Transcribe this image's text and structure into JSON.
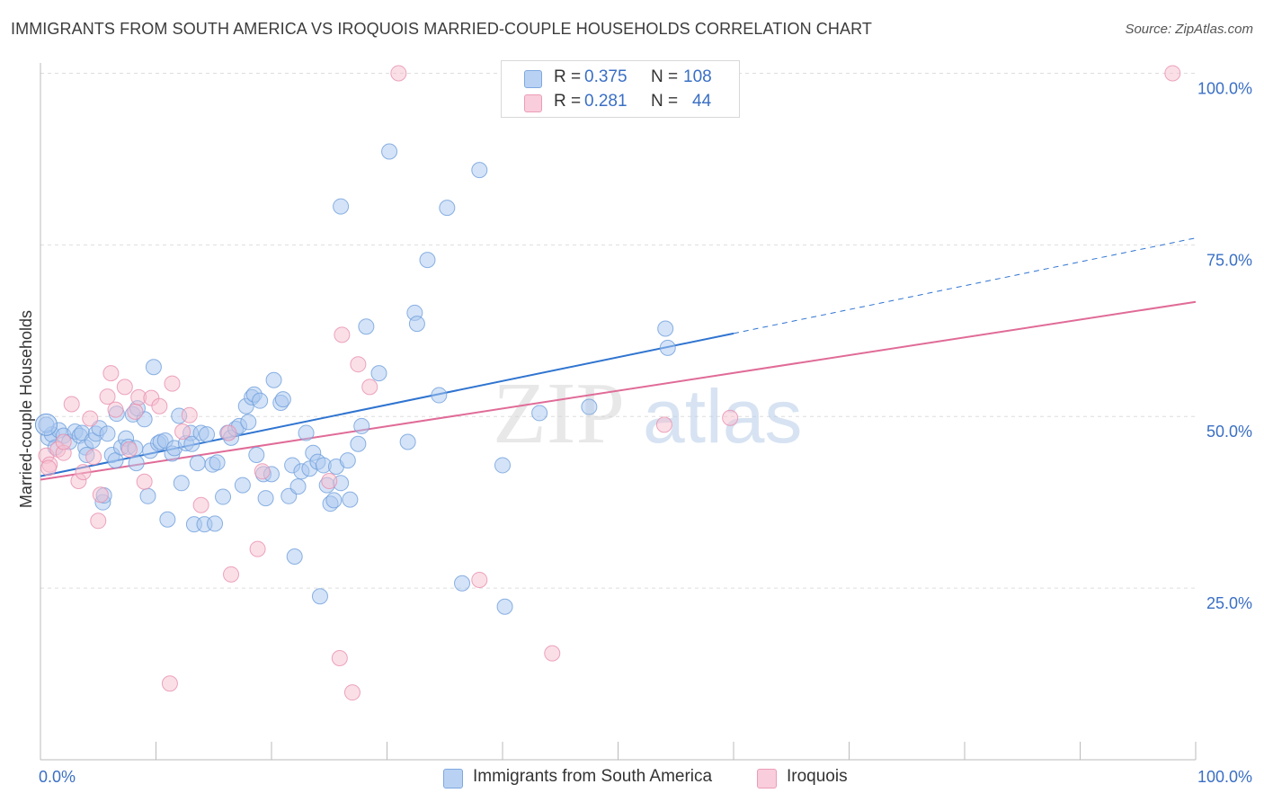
{
  "header": {
    "title": "IMMIGRANTS FROM SOUTH AMERICA VS IROQUOIS MARRIED-COUPLE HOUSEHOLDS CORRELATION CHART",
    "source": "Source: ZipAtlas.com"
  },
  "watermark": {
    "part1": "ZIP",
    "part2": "atlas"
  },
  "colors": {
    "blue_fill": "#a9c8f0",
    "blue_stroke": "#6f9fdc",
    "blue_line": "#2f74d0",
    "pink_fill": "#f6bfd0",
    "pink_stroke": "#e98fae",
    "pink_line": "#e06b97",
    "axis_label": "#3a6fc4",
    "grid": "#dddddd"
  },
  "legend_top": [
    {
      "swatch": "blue",
      "r_label": "R =",
      "r_value": "0.375",
      "n_label": "N =",
      "n_value": "108"
    },
    {
      "swatch": "pink",
      "r_label": "R =",
      "r_value": "0.281",
      "n_label": "N =",
      "n_value": "44"
    }
  ],
  "legend_bottom": [
    {
      "swatch": "blue",
      "label": "Immigrants from South America"
    },
    {
      "swatch": "pink",
      "label": "Iroquois"
    }
  ],
  "chart_data": {
    "type": "scatter",
    "title": "IMMIGRANTS FROM SOUTH AMERICA VS IROQUOIS MARRIED-COUPLE HOUSEHOLDS CORRELATION CHART",
    "xlabel": "",
    "ylabel": "Married-couple Households",
    "xlim": [
      0,
      100
    ],
    "ylim": [
      0,
      101.5
    ],
    "x_tick_labels": [
      {
        "value": 0,
        "label": "0.0%"
      },
      {
        "value": 100,
        "label": "100.0%"
      }
    ],
    "y_tick_labels": [
      {
        "value": 100,
        "label": "100.0%"
      },
      {
        "value": 75,
        "label": "75.0%"
      },
      {
        "value": 50,
        "label": "50.0%"
      },
      {
        "value": 25,
        "label": "25.0%"
      }
    ],
    "grid": true,
    "legend_position": "top-center",
    "series": [
      {
        "name": "Immigrants from South America",
        "color": "blue",
        "R": 0.375,
        "N": 108,
        "trend": {
          "x0": 0,
          "y0": 41.3,
          "x1": 60,
          "y1": 62.1,
          "dashed_to": 100,
          "dashed_y": 76.0
        },
        "points": [
          [
            0.7,
            46.9
          ],
          [
            1.0,
            47.4
          ],
          [
            1.3,
            45.5
          ],
          [
            1.6,
            48.0
          ],
          [
            2.0,
            47.2
          ],
          [
            2.5,
            46.3
          ],
          [
            3.0,
            47.8
          ],
          [
            3.4,
            47.2
          ],
          [
            3.6,
            47.6
          ],
          [
            3.9,
            45.5
          ],
          [
            4.0,
            44.4
          ],
          [
            4.5,
            46.5
          ],
          [
            4.8,
            47.5
          ],
          [
            5.1,
            48.3
          ],
          [
            5.4,
            37.5
          ],
          [
            5.5,
            38.5
          ],
          [
            5.8,
            47.5
          ],
          [
            6.2,
            44.4
          ],
          [
            6.5,
            43.6
          ],
          [
            6.6,
            50.4
          ],
          [
            7.0,
            45.5
          ],
          [
            7.4,
            46.8
          ],
          [
            7.6,
            45.6
          ],
          [
            8.0,
            50.3
          ],
          [
            8.2,
            45.4
          ],
          [
            8.3,
            43.2
          ],
          [
            9.0,
            49.6
          ],
          [
            9.3,
            38.4
          ],
          [
            9.5,
            45.0
          ],
          [
            9.8,
            57.2
          ],
          [
            10.2,
            46.1
          ],
          [
            10.4,
            46.3
          ],
          [
            10.8,
            46.5
          ],
          [
            11.0,
            35.0
          ],
          [
            11.4,
            44.6
          ],
          [
            11.6,
            45.4
          ],
          [
            12.0,
            50.1
          ],
          [
            12.2,
            40.3
          ],
          [
            12.6,
            46.1
          ],
          [
            13.0,
            47.6
          ],
          [
            13.1,
            46.0
          ],
          [
            13.3,
            34.3
          ],
          [
            13.6,
            43.2
          ],
          [
            13.9,
            47.6
          ],
          [
            14.2,
            34.3
          ],
          [
            14.4,
            47.4
          ],
          [
            14.9,
            43.0
          ],
          [
            15.1,
            34.4
          ],
          [
            15.3,
            43.3
          ],
          [
            15.8,
            38.3
          ],
          [
            16.2,
            47.6
          ],
          [
            16.5,
            46.9
          ],
          [
            16.9,
            48.2
          ],
          [
            17.2,
            48.6
          ],
          [
            17.5,
            40.0
          ],
          [
            17.8,
            51.5
          ],
          [
            18.0,
            49.2
          ],
          [
            18.3,
            52.8
          ],
          [
            18.5,
            53.2
          ],
          [
            18.7,
            44.4
          ],
          [
            19.0,
            52.3
          ],
          [
            19.3,
            41.6
          ],
          [
            19.5,
            38.1
          ],
          [
            20.0,
            41.6
          ],
          [
            20.2,
            55.3
          ],
          [
            20.8,
            52.0
          ],
          [
            21.0,
            52.5
          ],
          [
            21.5,
            38.4
          ],
          [
            21.8,
            42.9
          ],
          [
            22.0,
            29.6
          ],
          [
            22.3,
            39.8
          ],
          [
            22.6,
            42.0
          ],
          [
            23.0,
            47.6
          ],
          [
            23.3,
            42.4
          ],
          [
            23.6,
            44.7
          ],
          [
            24.0,
            43.4
          ],
          [
            24.2,
            23.8
          ],
          [
            24.5,
            42.9
          ],
          [
            24.8,
            40.0
          ],
          [
            25.1,
            37.3
          ],
          [
            25.4,
            37.8
          ],
          [
            25.6,
            42.7
          ],
          [
            26.0,
            40.3
          ],
          [
            26.6,
            43.6
          ],
          [
            26.8,
            37.9
          ],
          [
            27.5,
            46.0
          ],
          [
            27.8,
            48.6
          ],
          [
            28.2,
            63.1
          ],
          [
            29.3,
            56.3
          ],
          [
            30.2,
            88.6
          ],
          [
            32.4,
            65.1
          ],
          [
            32.6,
            63.5
          ],
          [
            26.0,
            80.6
          ],
          [
            31.8,
            46.3
          ],
          [
            33.5,
            72.8
          ],
          [
            34.5,
            53.1
          ],
          [
            35.2,
            80.4
          ],
          [
            36.5,
            25.7
          ],
          [
            38.0,
            85.9
          ],
          [
            40.0,
            42.9
          ],
          [
            40.2,
            22.3
          ],
          [
            43.2,
            50.5
          ],
          [
            47.5,
            51.4
          ],
          [
            54.1,
            62.8
          ],
          [
            54.3,
            60.0
          ],
          [
            59.4,
            100.0
          ],
          [
            0.5,
            48.8
          ],
          [
            8.4,
            51.2
          ]
        ]
      },
      {
        "name": "Iroquois",
        "color": "pink",
        "R": 0.281,
        "N": 44,
        "trend": {
          "x0": 0,
          "y0": 40.8,
          "x1": 100,
          "y1": 66.7
        },
        "points": [
          [
            0.5,
            44.3
          ],
          [
            0.8,
            43.0
          ],
          [
            1.5,
            45.2
          ],
          [
            2.0,
            44.7
          ],
          [
            2.7,
            51.8
          ],
          [
            3.3,
            40.6
          ],
          [
            3.7,
            41.9
          ],
          [
            4.3,
            49.7
          ],
          [
            4.6,
            44.1
          ],
          [
            5.0,
            34.8
          ],
          [
            5.2,
            38.6
          ],
          [
            5.8,
            52.9
          ],
          [
            6.1,
            56.3
          ],
          [
            6.5,
            51.0
          ],
          [
            7.3,
            54.3
          ],
          [
            7.7,
            45.2
          ],
          [
            8.2,
            50.7
          ],
          [
            8.5,
            52.8
          ],
          [
            9.0,
            40.5
          ],
          [
            9.6,
            52.7
          ],
          [
            10.3,
            51.5
          ],
          [
            11.4,
            54.8
          ],
          [
            12.3,
            47.8
          ],
          [
            12.9,
            50.2
          ],
          [
            13.9,
            37.1
          ],
          [
            16.3,
            47.6
          ],
          [
            16.5,
            27.0
          ],
          [
            18.8,
            30.7
          ],
          [
            19.2,
            42.0
          ],
          [
            25.0,
            40.6
          ],
          [
            26.1,
            61.9
          ],
          [
            27.0,
            9.8
          ],
          [
            27.5,
            57.6
          ],
          [
            28.5,
            54.3
          ],
          [
            31.0,
            100.0
          ],
          [
            38.0,
            26.2
          ],
          [
            44.3,
            15.5
          ],
          [
            54.0,
            48.8
          ],
          [
            59.7,
            49.8
          ],
          [
            98.0,
            100.0
          ],
          [
            11.2,
            11.1
          ],
          [
            25.9,
            14.8
          ],
          [
            0.7,
            42.5
          ],
          [
            2.0,
            46.3
          ]
        ]
      }
    ]
  }
}
